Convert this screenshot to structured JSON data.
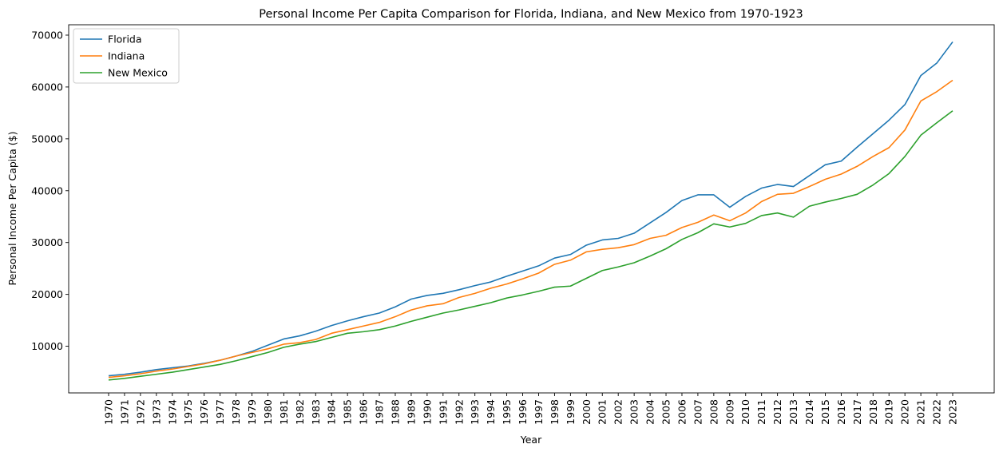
{
  "chart_data": {
    "type": "line",
    "title": "Personal Income Per Capita Comparison for Florida, Indiana, and New Mexico from 1970-1923",
    "xlabel": "Year",
    "ylabel": "Personal Income Per Capita ($)",
    "x": [
      "1970",
      "1971",
      "1972",
      "1973",
      "1974",
      "1975",
      "1976",
      "1977",
      "1978",
      "1979",
      "1980",
      "1981",
      "1982",
      "1983",
      "1984",
      "1985",
      "1986",
      "1987",
      "1988",
      "1989",
      "1990",
      "1991",
      "1992",
      "1993",
      "1994",
      "1995",
      "1996",
      "1997",
      "1998",
      "1999",
      "2000",
      "2001",
      "2002",
      "2003",
      "2004",
      "2005",
      "2006",
      "2007",
      "2008",
      "2009",
      "2010",
      "2011",
      "2012",
      "2013",
      "2014",
      "2015",
      "2016",
      "2017",
      "2018",
      "2019",
      "2020",
      "2021",
      "2022",
      "2023"
    ],
    "ylim": [
      1000,
      72000
    ],
    "yticks": [
      10000,
      20000,
      30000,
      40000,
      50000,
      60000,
      70000
    ],
    "grid": false,
    "legend_position": "top-left",
    "series": [
      {
        "name": "Florida",
        "color": "#1f77b4",
        "values": [
          4300,
          4600,
          5000,
          5500,
          5850,
          6200,
          6700,
          7300,
          8100,
          9000,
          10200,
          11400,
          12000,
          12900,
          14000,
          14900,
          15700,
          16400,
          17600,
          19100,
          19800,
          20200,
          20900,
          21700,
          22400,
          23500,
          24500,
          25500,
          27000,
          27700,
          29500,
          30500,
          30800,
          31800,
          33800,
          35800,
          38100,
          39200,
          39200,
          36800,
          38900,
          40500,
          41200,
          40800,
          42900,
          45000,
          45700,
          48400,
          51000,
          53600,
          56600,
          62200,
          64600,
          68700
        ]
      },
      {
        "name": "Indiana",
        "color": "#ff7f0e",
        "values": [
          4000,
          4300,
          4700,
          5200,
          5600,
          6100,
          6600,
          7300,
          8100,
          8800,
          9500,
          10400,
          10700,
          11300,
          12500,
          13200,
          13900,
          14600,
          15700,
          17000,
          17800,
          18200,
          19400,
          20200,
          21200,
          22000,
          23000,
          24100,
          25800,
          26600,
          28200,
          28700,
          29000,
          29600,
          30800,
          31400,
          32900,
          33900,
          35300,
          34200,
          35700,
          37900,
          39300,
          39500,
          40800,
          42200,
          43200,
          44700,
          46600,
          48300,
          51700,
          57300,
          59100,
          61300
        ]
      },
      {
        "name": "New Mexico",
        "color": "#2ca02c",
        "values": [
          3500,
          3800,
          4200,
          4600,
          5000,
          5500,
          6000,
          6500,
          7200,
          8000,
          8800,
          9800,
          10400,
          10900,
          11700,
          12500,
          12800,
          13200,
          13900,
          14800,
          15600,
          16400,
          17000,
          17700,
          18400,
          19300,
          19900,
          20600,
          21400,
          21600,
          23100,
          24600,
          25300,
          26100,
          27400,
          28800,
          30600,
          31900,
          33600,
          33000,
          33700,
          35200,
          35700,
          34900,
          37000,
          37800,
          38500,
          39300,
          41100,
          43300,
          46600,
          50700,
          53100,
          55400
        ]
      }
    ]
  }
}
